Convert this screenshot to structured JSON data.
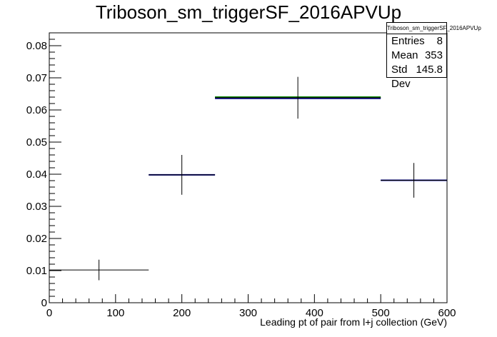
{
  "chart_data": {
    "type": "histogram",
    "title": "Triboson_sm_triggerSF_2016APVUp",
    "xlabel": "Leading pt of pair from l+j collection (GeV)",
    "ylabel": "",
    "xlim": [
      0,
      600
    ],
    "ylim": [
      0,
      0.084
    ],
    "x_ticks": [
      "0",
      "100",
      "200",
      "300",
      "400",
      "500",
      "600"
    ],
    "y_ticks": [
      "0",
      "0.01",
      "0.02",
      "0.03",
      "0.04",
      "0.05",
      "0.06",
      "0.07",
      "0.08"
    ],
    "series": [
      {
        "color": "#000000",
        "bins": [
          {
            "xlow": 0,
            "xhigh": 150,
            "value": 0.0102,
            "error": 0.0032
          },
          {
            "xlow": 150,
            "xhigh": 250,
            "value": 0.0398,
            "error": 0.0062
          },
          {
            "xlow": 250,
            "xhigh": 500,
            "value": 0.0638,
            "error": 0.0065
          },
          {
            "xlow": 500,
            "xhigh": 600,
            "value": 0.0381,
            "error": 0.0054
          }
        ]
      },
      {
        "color": "#00008b",
        "bins": [
          {
            "xlow": 150,
            "xhigh": 250,
            "value": 0.0398
          },
          {
            "xlow": 250,
            "xhigh": 500,
            "value": 0.0636
          },
          {
            "xlow": 500,
            "xhigh": 600,
            "value": 0.0381
          }
        ]
      },
      {
        "color": "#008000",
        "bins": [
          {
            "xlow": 250,
            "xhigh": 500,
            "value": 0.064
          }
        ]
      }
    ],
    "stats": {
      "name": "Triboson_sm_triggerSF_2016APVUp",
      "entries_label": "Entries",
      "entries": "8",
      "mean_label": "Mean",
      "mean": "353",
      "std_label": "Std Dev",
      "std": "145.8"
    },
    "legend_position": "top-right",
    "grid": false
  }
}
